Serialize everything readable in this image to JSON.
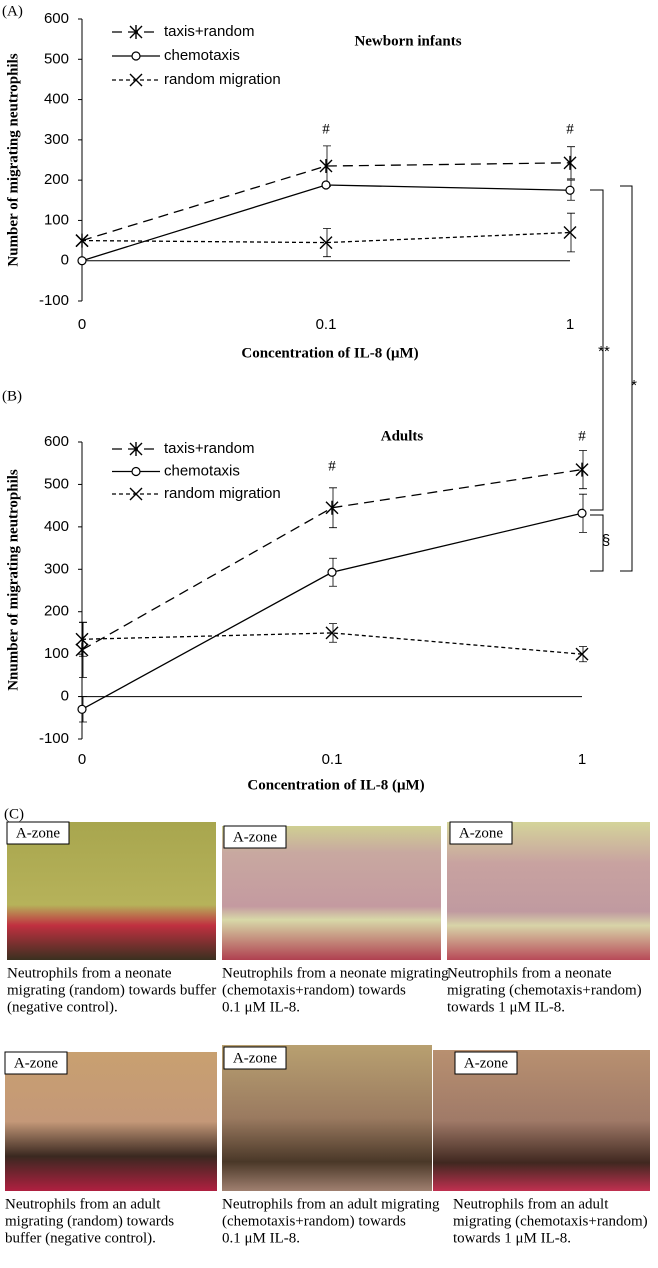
{
  "chart_data": [
    {
      "type": "line",
      "panel": "(A)",
      "title": "Newborn infants",
      "ylabel": "Number of migrating neutrophils",
      "xlabel": "Concentration of IL-8 (μM)",
      "categories": [
        "0",
        "0.1",
        "1"
      ],
      "ylim": [
        -100,
        600
      ],
      "yticks": [
        -100,
        0,
        100,
        200,
        300,
        400,
        500,
        600
      ],
      "series": [
        {
          "name": "taxis+random",
          "color": "#000000",
          "line_style": "dashed",
          "marker": "star",
          "values": [
            50,
            235,
            243
          ],
          "errors": [
            0,
            50,
            40
          ]
        },
        {
          "name": "chemotaxis",
          "color": "#000000",
          "line_style": "solid",
          "marker": "circle",
          "values": [
            0,
            188,
            175
          ],
          "errors": [
            0,
            0,
            25
          ]
        },
        {
          "name": "random migration",
          "color": "#000000",
          "line_style": "dotted",
          "marker": "x",
          "values": [
            50,
            45,
            70
          ],
          "errors": [
            0,
            35,
            48
          ]
        }
      ],
      "annotations": [
        "#",
        "#"
      ]
    },
    {
      "type": "line",
      "panel": "(B)",
      "title": "Adults",
      "ylabel": "Nnumber of migrating neutrophils",
      "xlabel": "Concentration of IL-8 (μM)",
      "categories": [
        "0",
        "0.1",
        "1"
      ],
      "ylim": [
        -100,
        600
      ],
      "yticks": [
        -100,
        0,
        100,
        200,
        300,
        400,
        500,
        600
      ],
      "series": [
        {
          "name": "taxis+random",
          "color": "#000000",
          "line_style": "dashed",
          "marker": "star",
          "values": [
            110,
            445,
            535
          ],
          "errors": [
            65,
            47,
            45
          ]
        },
        {
          "name": "chemotaxis",
          "color": "#000000",
          "line_style": "solid",
          "marker": "circle",
          "values": [
            -30,
            293,
            432
          ],
          "errors": [
            30,
            33,
            45
          ]
        },
        {
          "name": "random migration",
          "color": "#000000",
          "line_style": "dotted",
          "marker": "x",
          "values": [
            135,
            150,
            100
          ],
          "errors": [
            40,
            22,
            18
          ]
        }
      ],
      "annotations": [
        "#",
        "#"
      ]
    }
  ],
  "comparisons": [
    "**",
    "*",
    "§"
  ],
  "panel_c": {
    "label": "(C)",
    "images": [
      {
        "zone_label": "A-zone",
        "caption": [
          "Neutrophils from a neonate",
          "migrating (random) towards buffer",
          "(negative control)."
        ]
      },
      {
        "zone_label": "A-zone",
        "caption": [
          "Neutrophils from a neonate migrating",
          "(chemotaxis+random) towards",
          "0.1 μM IL-8."
        ]
      },
      {
        "zone_label": "A-zone",
        "caption": [
          "Neutrophils from a neonate",
          "migrating (chemotaxis+random)",
          "towards 1 μM IL-8."
        ]
      },
      {
        "zone_label": "A-zone",
        "caption": [
          "Neutrophils from an adult",
          "migrating (random) towards",
          "buffer (negative control)."
        ]
      },
      {
        "zone_label": "A-zone",
        "caption": [
          "Neutrophils from an adult migrating",
          "(chemotaxis+random) towards",
          "0.1 μM IL-8."
        ]
      },
      {
        "zone_label": "A-zone",
        "caption": [
          "Neutrophils from an adult",
          "migrating (chemotaxis+random)",
          "towards 1 μM IL-8."
        ]
      }
    ]
  }
}
